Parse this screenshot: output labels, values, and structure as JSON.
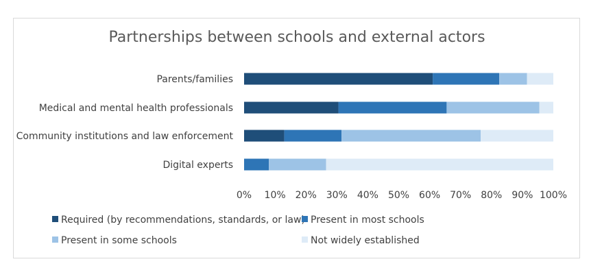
{
  "chart_data": {
    "type": "bar",
    "orientation": "horizontal",
    "stacked": "percent",
    "title": "Partnerships between schools and external actors",
    "categories": [
      "Parents/families",
      "Medical and mental health professionals",
      "Community institutions and law enforcement",
      "Digital experts"
    ],
    "series": [
      {
        "name": "Required (by recommendations, standards, or law)",
        "color": "#1f4e79",
        "values": [
          61,
          30.5,
          13,
          0
        ]
      },
      {
        "name": "Present in most schools",
        "color": "#2e75b6",
        "values": [
          21.5,
          35,
          18.5,
          8
        ]
      },
      {
        "name": "Present in some schools",
        "color": "#9dc3e6",
        "values": [
          9,
          30,
          45,
          18.5
        ]
      },
      {
        "name": "Not widely established",
        "color": "#deebf7",
        "values": [
          8.5,
          4.5,
          23.5,
          73.5
        ]
      }
    ],
    "xlim": [
      0,
      100
    ],
    "xticks": [
      "0%",
      "10%",
      "20%",
      "30%",
      "40%",
      "50%",
      "60%",
      "70%",
      "80%",
      "90%",
      "100%"
    ],
    "grid": false,
    "legend": "bottom"
  }
}
